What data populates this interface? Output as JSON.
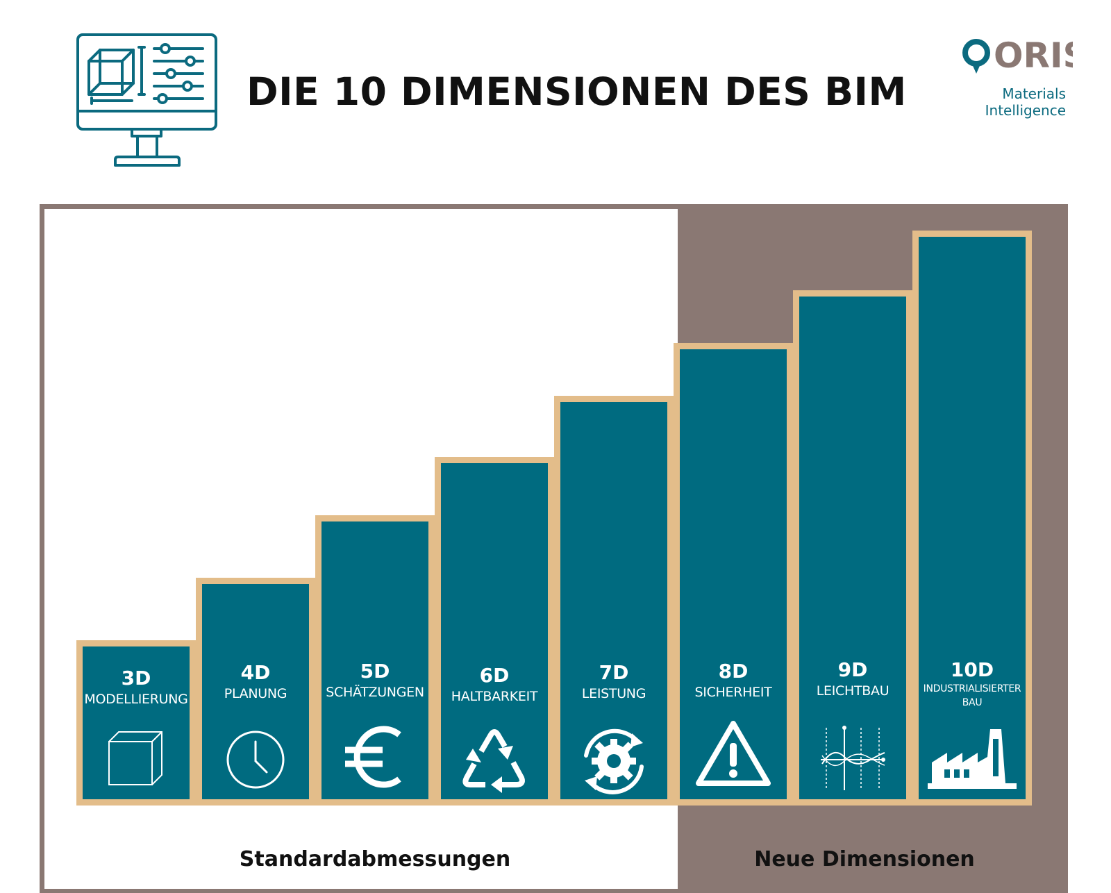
{
  "title": "DIE 10 DIMENSIONEN DES BIM",
  "logo": {
    "name": "ORIS",
    "subline1": "Materials",
    "subline2": "Intelligence",
    "color": "#0b6a7f",
    "secondary_color": "#8a7873"
  },
  "colors": {
    "step_fill": "#006b80",
    "step_border": "#e3bd8a",
    "new_zone": "#8a7873"
  },
  "steps": [
    {
      "dim": "3D",
      "name": "MODELLIERUNG",
      "icon": "cube-icon"
    },
    {
      "dim": "4D",
      "name": "PLANUNG",
      "icon": "clock-icon"
    },
    {
      "dim": "5D",
      "name": "SCHÄTZUNGEN",
      "icon": "euro-icon"
    },
    {
      "dim": "6D",
      "name": "HALTBARKEIT",
      "icon": "recycle-icon"
    },
    {
      "dim": "7D",
      "name": "LEISTUNG",
      "icon": "gear-cycle-icon"
    },
    {
      "dim": "8D",
      "name": "SICHERHEIT",
      "icon": "warning-icon"
    },
    {
      "dim": "9D",
      "name": "LEICHTBAU",
      "icon": "graph-icon"
    },
    {
      "dim": "10D",
      "name": "INDUSTRIALISIERTER BAU",
      "icon": "factory-icon"
    }
  ],
  "zones": {
    "standard": "Standardabmessungen",
    "new": "Neue Dimensionen"
  }
}
